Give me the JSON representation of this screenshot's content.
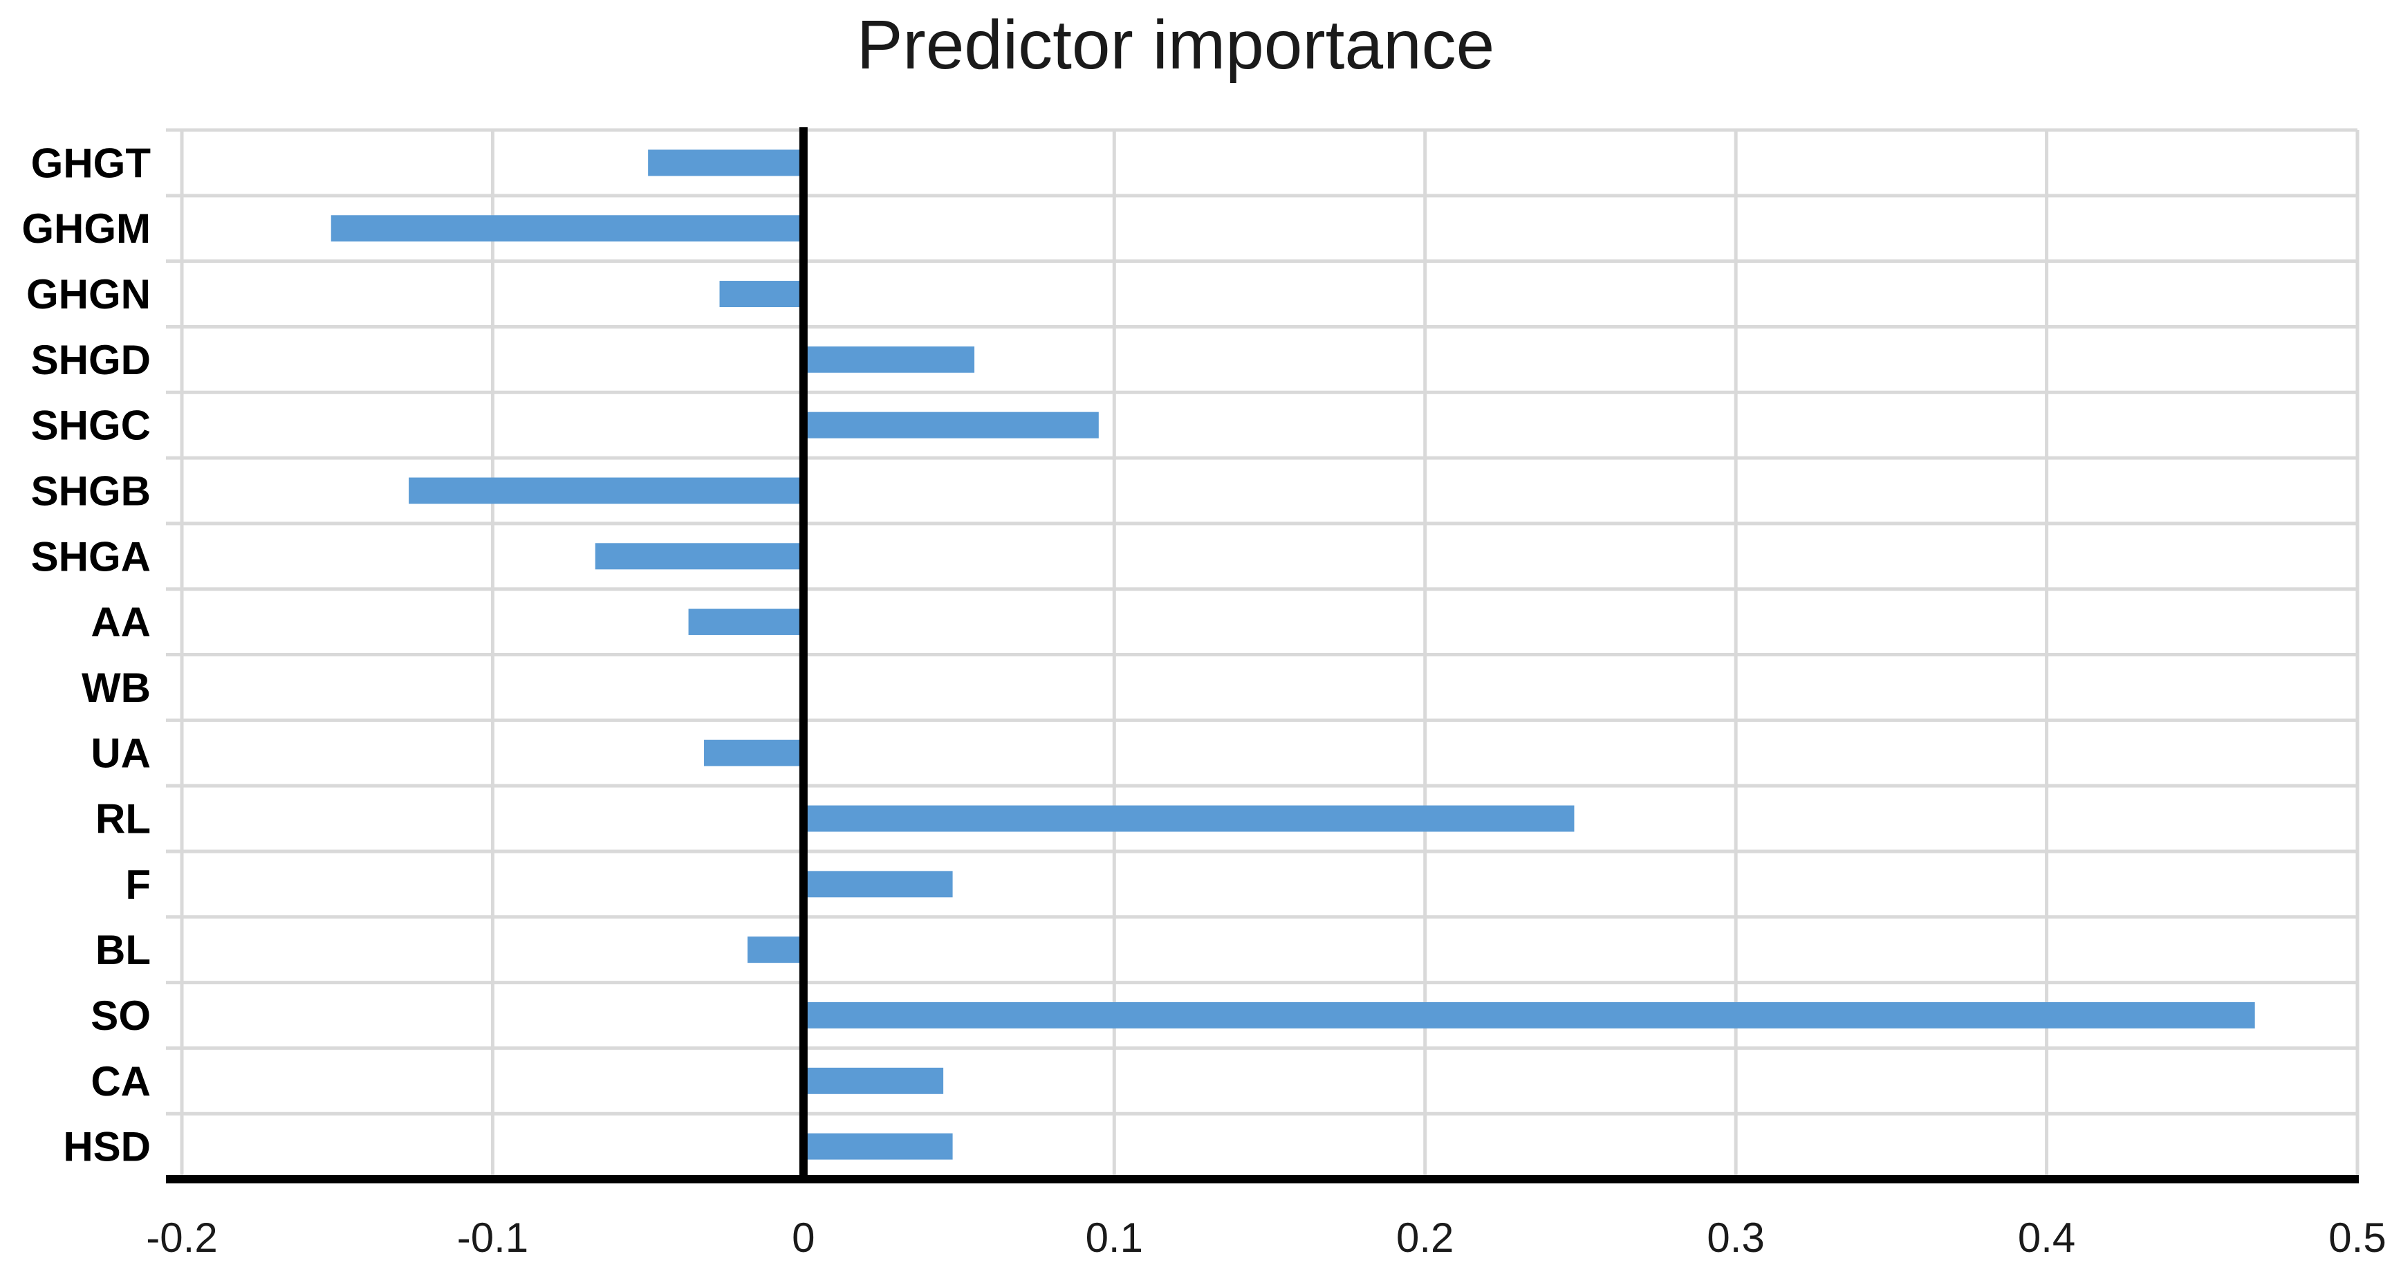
{
  "title": "Predictor importance",
  "colors": {
    "bar": "#5B9BD5",
    "gridline": "#D9D9D9",
    "axis_line": "#000000",
    "text": "#1a1a1a"
  },
  "chart_data": {
    "type": "bar",
    "orientation": "horizontal",
    "title": "Predictor importance",
    "xlabel": "",
    "ylabel": "",
    "categories": [
      "GHGT",
      "GHGM",
      "GHGN",
      "SHGD",
      "SHGC",
      "SHGB",
      "SHGA",
      "AA",
      "WB",
      "UA",
      "RL",
      "F",
      "BL",
      "SO",
      "CA",
      "HSD"
    ],
    "values": [
      -0.05,
      -0.152,
      -0.027,
      0.055,
      0.095,
      -0.127,
      -0.067,
      -0.037,
      0,
      -0.032,
      0.248,
      0.048,
      -0.018,
      0.467,
      0.045,
      0.048
    ],
    "xlim": [
      -0.2,
      0.5
    ],
    "x_tick_values": [
      -0.2,
      -0.1,
      0,
      0.1,
      0.2,
      0.3,
      0.4,
      0.5
    ],
    "x_tick_labels": [
      "-0.2",
      "-0.1",
      "0",
      "0.1",
      "0.2",
      "0.3",
      "0.4",
      "0.5"
    ],
    "grid": true,
    "legend": false
  }
}
